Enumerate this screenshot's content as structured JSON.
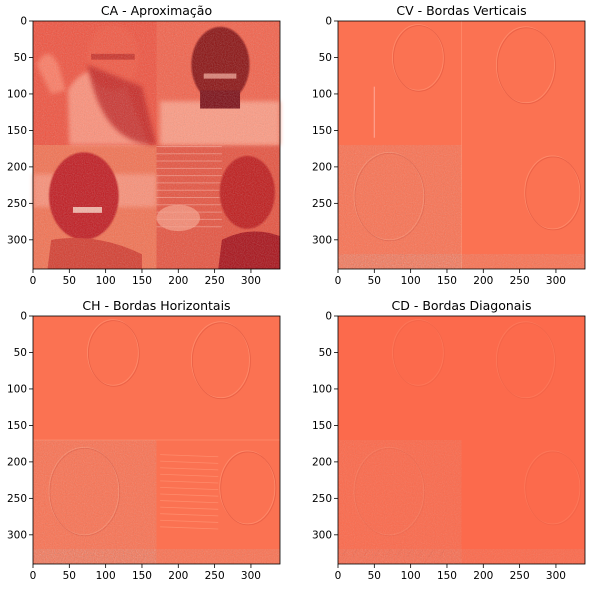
{
  "colors": {
    "background": "#ffffff",
    "axis": "#000000",
    "ca_base": "#f25a44",
    "ca_dark": "#a01010",
    "ca_light": "#ff9a84",
    "detail_base": "#fb7252",
    "detail_dark": "#e35b43",
    "detail_light": "#ff9474"
  },
  "chart_data": [
    {
      "type": "heatmap",
      "title": "CA - Aproximação",
      "xlim": [
        0,
        340
      ],
      "ylim": [
        340,
        0
      ],
      "x_ticks": [
        "0",
        "50",
        "100",
        "150",
        "200",
        "250",
        "300"
      ],
      "y_ticks": [
        "0",
        "50",
        "100",
        "150",
        "200",
        "250",
        "300"
      ],
      "colormap": "Reds"
    },
    {
      "type": "heatmap",
      "title": "CV - Bordas Verticais",
      "xlim": [
        0,
        340
      ],
      "ylim": [
        340,
        0
      ],
      "x_ticks": [
        "0",
        "50",
        "100",
        "150",
        "200",
        "250",
        "300"
      ],
      "y_ticks": [
        "0",
        "50",
        "100",
        "150",
        "200",
        "250",
        "300"
      ],
      "colormap": "Reds"
    },
    {
      "type": "heatmap",
      "title": "CH - Bordas Horizontais",
      "xlim": [
        0,
        340
      ],
      "ylim": [
        340,
        0
      ],
      "x_ticks": [
        "0",
        "50",
        "100",
        "150",
        "200",
        "250",
        "300"
      ],
      "y_ticks": [
        "0",
        "50",
        "100",
        "150",
        "200",
        "250",
        "300"
      ],
      "colormap": "Reds"
    },
    {
      "type": "heatmap",
      "title": "CD - Bordas Diagonais",
      "xlim": [
        0,
        340
      ],
      "ylim": [
        340,
        0
      ],
      "x_ticks": [
        "0",
        "50",
        "100",
        "150",
        "200",
        "250",
        "300"
      ],
      "y_ticks": [
        "0",
        "50",
        "100",
        "150",
        "200",
        "250",
        "300"
      ],
      "colormap": "Reds"
    }
  ]
}
